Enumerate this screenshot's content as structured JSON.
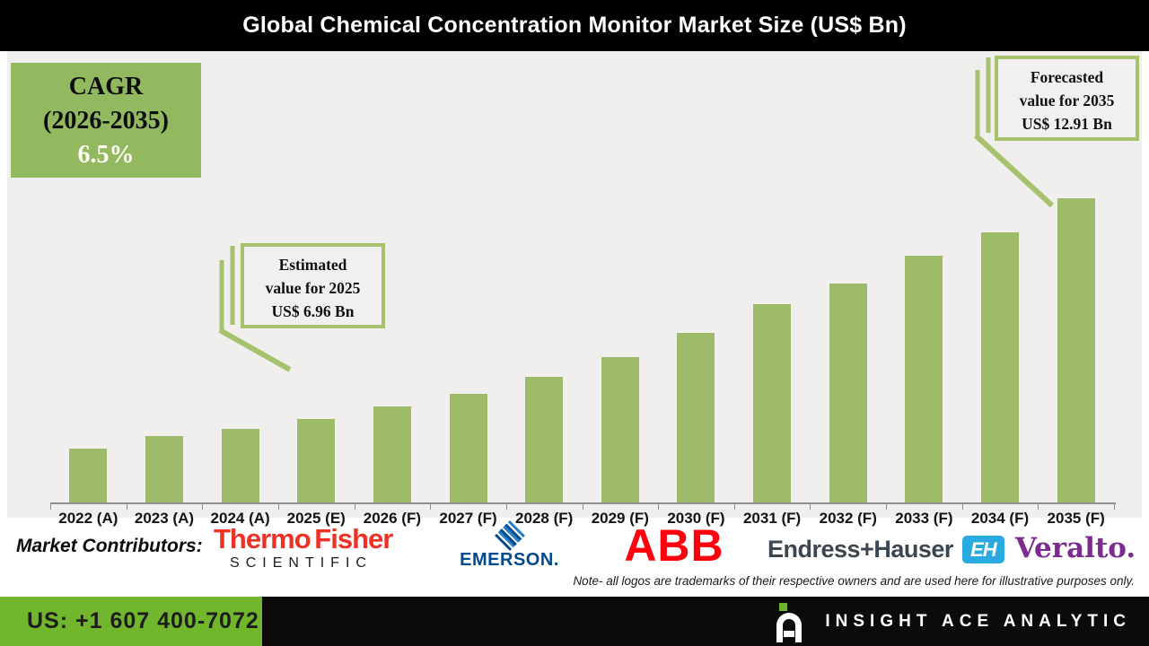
{
  "title_bar": {
    "title": "Global Chemical Concentration Monitor Market Size (US$ Bn)"
  },
  "cagr_box": {
    "line1": "CAGR",
    "line2": "(2026-2035)",
    "line3": "6.5%"
  },
  "callouts": {
    "estimated": {
      "line1": "Estimated",
      "line2": "value for 2025",
      "line3": "US$ 6.96 Bn"
    },
    "forecasted": {
      "line1": "Forecasted",
      "line2": "value for 2035",
      "line3": "US$ 12.91 Bn"
    }
  },
  "chart_data": {
    "type": "bar",
    "title": "Global Chemical Concentration Monitor Market Size (US$ Bn)",
    "unit": "US$ Bn",
    "categories": [
      "2022 (A)",
      "2023 (A)",
      "2024 (A)",
      "2025 (E)",
      "2026 (F)",
      "2027 (F)",
      "2028 (F)",
      "2029 (F)",
      "2030 (F)",
      "2031 (F)",
      "2032 (F)",
      "2033 (F)",
      "2034 (F)",
      "2035 (F)"
    ],
    "values": [
      6.16,
      6.48,
      6.69,
      6.96,
      7.3,
      7.64,
      8.1,
      8.63,
      9.28,
      10.06,
      10.61,
      11.36,
      11.99,
      12.91
    ],
    "labeled_points": [
      {
        "category": "2025 (E)",
        "value": 6.96,
        "label": "Estimated value for 2025 US$ 6.96 Bn"
      },
      {
        "category": "2035 (F)",
        "value": 12.91,
        "label": "Forecasted value for 2035 US$ 12.91 Bn"
      }
    ],
    "cagr": {
      "period": "2026-2035",
      "percent": 6.5
    },
    "ylim": [
      4.7,
      15.5
    ],
    "grid": false,
    "legend": "none",
    "bar_color": "#9cba68"
  },
  "contributors": {
    "label": "Market Contributors:",
    "thermo": {
      "line1": "Thermo Fisher",
      "line2": "SCIENTIFIC"
    },
    "emerson": {
      "name": "EMERSON."
    },
    "abb": {
      "name": "ABB"
    },
    "eh": {
      "name": "Endress+Hauser",
      "badge": "EH"
    },
    "veralto": {
      "name": "Veralto."
    }
  },
  "note": {
    "text": "Note- all logos are trademarks of their respective owners and are used here for illustrative purposes only."
  },
  "footer": {
    "phone": "US: +1 607 400-7072",
    "brand": "INSIGHT ACE ANALYTIC"
  },
  "colors": {
    "bar_green": "#9cba68",
    "cagr_green": "#92b95f",
    "callout_border_green": "#a6c26d",
    "footer_green": "#72b62e",
    "chart_background": "#f0efed",
    "title_bar_black": "#000000",
    "abb_red": "#ff000f",
    "thermo_red": "#ee3124",
    "emerson_blue": "#004b8d",
    "eh_blue": "#29abe2",
    "veralto_purple": "#7a2c8f"
  }
}
